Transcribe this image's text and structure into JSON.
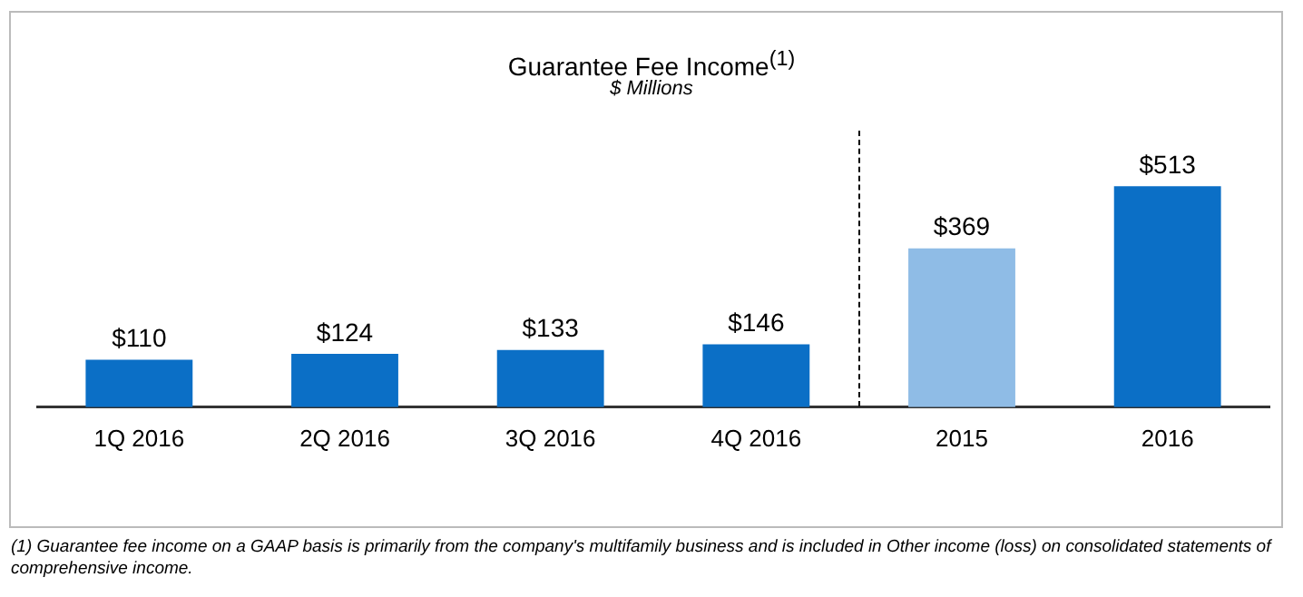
{
  "chart_data": {
    "type": "bar",
    "title": "Guarantee  Fee Income$^{(1)}$",
    "subtitle": "$ Millions",
    "categories": [
      "1Q 2016",
      "2Q 2016",
      "3Q 2016",
      "4Q 2016",
      "2015",
      "2016"
    ],
    "values": [
      110,
      124,
      133,
      146,
      369,
      513
    ],
    "value_labels": [
      "$110",
      "$124",
      "$133",
      "$146",
      "$369",
      "$513"
    ],
    "colors": [
      "#0b6fc6",
      "#0b6fc6",
      "#0b6fc6",
      "#0b6fc6",
      "#8fbce6",
      "#0b6fc6"
    ],
    "grid": false,
    "legend": false,
    "tick_labels": "x",
    "annotations": [
      "(1)   Guarantee fee income on a GAAP basis is primarily from the company's multifamily business and is included in Other income (loss) on consolidated statements of comprehensive income."
    ]
  }
}
